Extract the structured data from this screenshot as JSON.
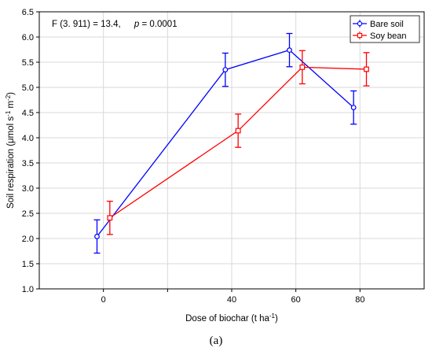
{
  "chart_data": {
    "type": "line",
    "xlabel_main": "Dose of biochar (t ha",
    "xlabel_sup": "-1",
    "xlabel_end": ")",
    "ylabel_main": "Soil respiration (μmol s",
    "ylabel_sup1": "-1",
    "ylabel_mid": " m",
    "ylabel_sup2": "-2",
    "ylabel_end": ")",
    "xlim": [
      -20,
      100
    ],
    "ylim": [
      1.0,
      6.5
    ],
    "x_ticks": [
      0,
      20,
      40,
      60,
      80
    ],
    "x_tick_labels": [
      "0",
      "",
      "40",
      "60",
      "80"
    ],
    "y_ticks": [
      1.0,
      1.5,
      2.0,
      2.5,
      3.0,
      3.5,
      4.0,
      4.5,
      5.0,
      5.5,
      6.0,
      6.5
    ],
    "y_tick_labels": [
      "1.0",
      "1.5",
      "2.0",
      "2.5",
      "3.0",
      "3.5",
      "4.0",
      "4.5",
      "5.0",
      "5.5",
      "6.0",
      "6.5"
    ],
    "grid": true,
    "legend_position": "top-right",
    "annotation": {
      "stat": "F (3. 911) = 13.4,",
      "p_label": "p",
      "p_value": " = 0.0001"
    },
    "series": [
      {
        "name": "Bare soil",
        "color": "#0000ff",
        "marker": "circle",
        "x": [
          -2,
          38,
          58,
          78
        ],
        "y": [
          2.04,
          5.35,
          5.74,
          4.6
        ],
        "err_low": [
          1.71,
          5.02,
          5.41,
          4.27
        ],
        "err_high": [
          2.37,
          5.68,
          6.07,
          4.93
        ]
      },
      {
        "name": "Soy bean",
        "color": "#ff0000",
        "marker": "square",
        "x": [
          2,
          42,
          62,
          82
        ],
        "y": [
          2.41,
          4.14,
          5.4,
          5.36
        ],
        "err_low": [
          2.08,
          3.81,
          5.07,
          5.03
        ],
        "err_high": [
          2.74,
          4.47,
          5.73,
          5.69
        ]
      }
    ]
  },
  "panel_label": "(a)"
}
